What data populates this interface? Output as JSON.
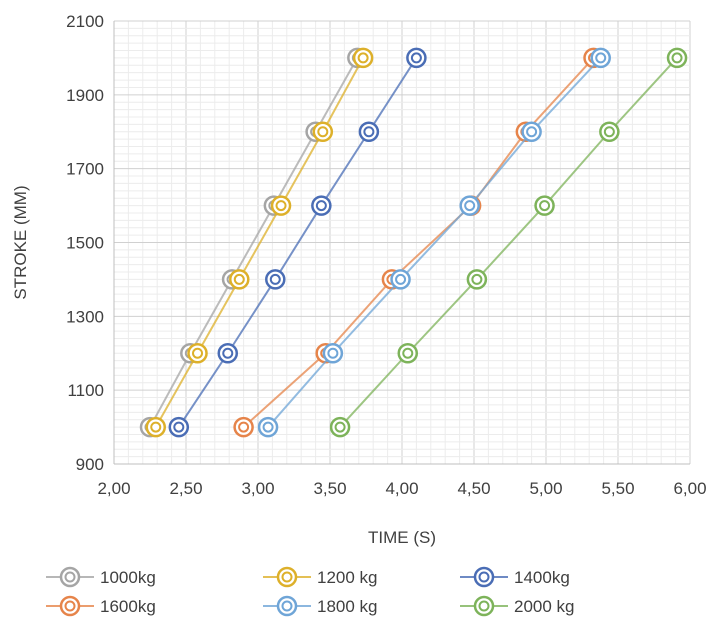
{
  "chart_data": {
    "type": "line",
    "xlabel": "TIME (S)",
    "ylabel": "STROKE (MM)",
    "xlim": [
      2.0,
      6.0
    ],
    "ylim": [
      900,
      2100
    ],
    "xticks": [
      "2,00",
      "2,50",
      "3,00",
      "3,50",
      "4,00",
      "4,50",
      "5,00",
      "5,50",
      "6,00"
    ],
    "yticks": [
      "900",
      "1100",
      "1300",
      "1500",
      "1700",
      "1900",
      "2100"
    ],
    "grid": true,
    "legend_position": "bottom",
    "series": [
      {
        "name": "1000kg",
        "color": "#A5A5A5",
        "points": [
          [
            2.25,
            1000
          ],
          [
            2.53,
            1200
          ],
          [
            2.82,
            1400
          ],
          [
            3.11,
            1600
          ],
          [
            3.4,
            1800
          ],
          [
            3.69,
            2000
          ]
        ]
      },
      {
        "name": "1200 kg",
        "color": "#DDB02A",
        "points": [
          [
            2.29,
            1000
          ],
          [
            2.58,
            1200
          ],
          [
            2.87,
            1400
          ],
          [
            3.16,
            1600
          ],
          [
            3.45,
            1800
          ],
          [
            3.73,
            2000
          ]
        ]
      },
      {
        "name": "1400kg",
        "color": "#4A6DB5",
        "points": [
          [
            2.45,
            1000
          ],
          [
            2.79,
            1200
          ],
          [
            3.12,
            1400
          ],
          [
            3.44,
            1600
          ],
          [
            3.77,
            1800
          ],
          [
            4.1,
            2000
          ]
        ]
      },
      {
        "name": "1600kg",
        "color": "#E6844A",
        "points": [
          [
            2.9,
            1000
          ],
          [
            3.47,
            1200
          ],
          [
            3.93,
            1400
          ],
          [
            4.48,
            1600
          ],
          [
            4.86,
            1800
          ],
          [
            5.33,
            2000
          ]
        ]
      },
      {
        "name": "1800 kg",
        "color": "#6FA5D7",
        "points": [
          [
            3.07,
            1000
          ],
          [
            3.52,
            1200
          ],
          [
            3.99,
            1400
          ],
          [
            4.47,
            1600
          ],
          [
            4.9,
            1800
          ],
          [
            5.38,
            2000
          ]
        ]
      },
      {
        "name": "2000 kg",
        "color": "#7DB35A",
        "points": [
          [
            3.57,
            1000
          ],
          [
            4.04,
            1200
          ],
          [
            4.52,
            1400
          ],
          [
            4.99,
            1600
          ],
          [
            5.44,
            1800
          ],
          [
            5.91,
            2000
          ]
        ]
      }
    ]
  }
}
